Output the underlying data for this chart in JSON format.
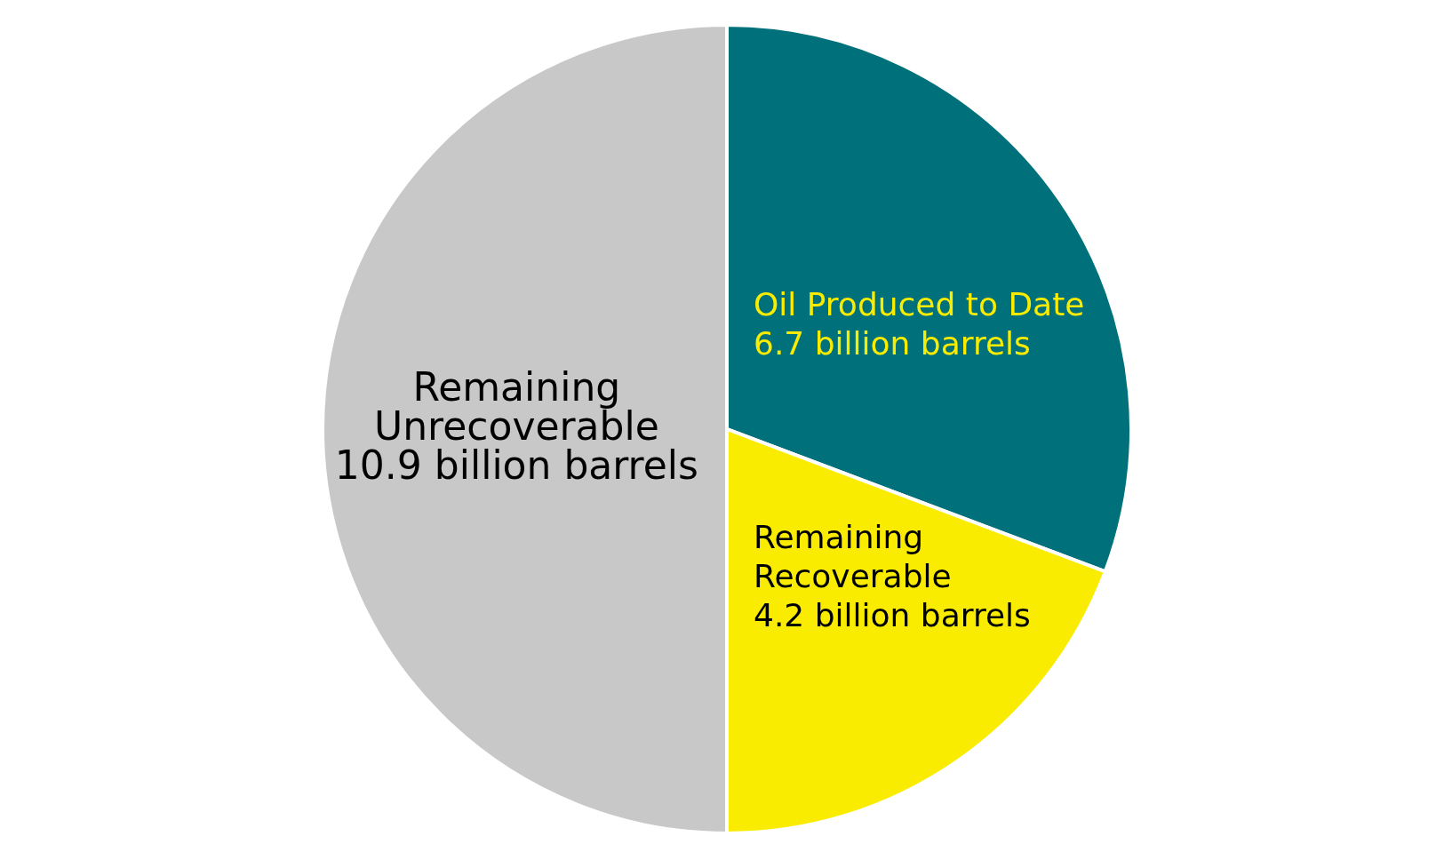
{
  "chart_data": {
    "type": "pie",
    "categories": [
      "Oil Produced to Date",
      "Remaining Recoverable",
      "Remaining Unrecoverable"
    ],
    "values": [
      6.7,
      4.2,
      10.9
    ],
    "colors": [
      "#00707a",
      "#f9ec00",
      "#c8c8c8"
    ],
    "value_labels": [
      "6.7 billion barrels",
      "4.2 billion barrels",
      "10.9 billion barrels"
    ]
  }
}
